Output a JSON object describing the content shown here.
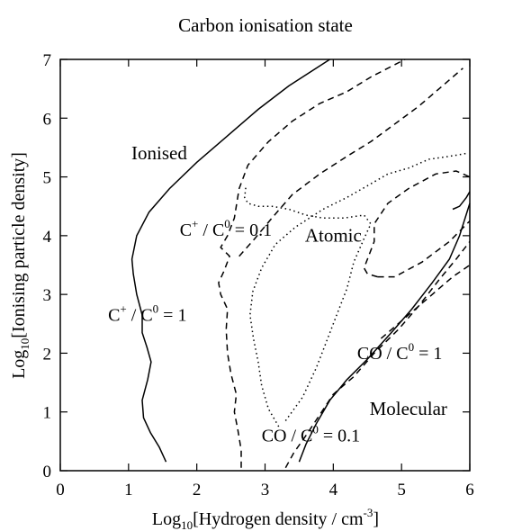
{
  "chart_data": {
    "type": "line",
    "title": "Carbon ionisation state",
    "xlabel": "Log",
    "xlabel_sub": "10",
    "xlabel_rest": "[Hydrogen density / cm",
    "xlabel_sup": "-3",
    "xlabel_end": "]",
    "ylabel": "Log",
    "ylabel_sub": "10",
    "ylabel_rest": "[Ionising particle density]",
    "xlim": [
      0,
      6
    ],
    "ylim": [
      0,
      7
    ],
    "xticks": [
      "0",
      "1",
      "2",
      "3",
      "4",
      "5",
      "6"
    ],
    "yticks": [
      "0",
      "1",
      "2",
      "3",
      "4",
      "5",
      "6",
      "7"
    ],
    "grid": false,
    "regions": [
      {
        "text": "Ionised",
        "x": 1.45,
        "y": 5.3
      },
      {
        "text": "Atomic",
        "x": 4.0,
        "y": 3.9
      },
      {
        "text": "Molecular",
        "x": 5.1,
        "y": 0.95
      }
    ],
    "contour_labels": [
      {
        "lhs": "C",
        "sup": "+",
        "mid": " / C",
        "sup2": "0",
        "rhs": " = 0.1",
        "x": 1.75,
        "y": 4.0
      },
      {
        "lhs": "C",
        "sup": "+",
        "mid": " / C",
        "sup2": "0",
        "rhs": " = 1",
        "x": 0.7,
        "y": 2.55
      },
      {
        "lhs": "CO / C",
        "sup": "",
        "mid": "",
        "sup2": "0",
        "rhs": " = 1",
        "x": 4.35,
        "y": 1.9
      },
      {
        "lhs": "CO / C",
        "sup": "",
        "mid": "",
        "sup2": "0",
        "rhs": " = 0.1",
        "x": 2.95,
        "y": 0.5
      }
    ],
    "series": [
      {
        "style": "solid",
        "points": [
          [
            1.55,
            0.15
          ],
          [
            1.45,
            0.4
          ],
          [
            1.32,
            0.65
          ],
          [
            1.22,
            0.9
          ],
          [
            1.2,
            1.2
          ],
          [
            1.28,
            1.55
          ],
          [
            1.33,
            1.85
          ],
          [
            1.27,
            2.1
          ],
          [
            1.2,
            2.35
          ],
          [
            1.2,
            2.65
          ],
          [
            1.12,
            3.0
          ],
          [
            1.07,
            3.35
          ],
          [
            1.05,
            3.6
          ],
          [
            1.12,
            4.0
          ],
          [
            1.3,
            4.4
          ],
          [
            1.6,
            4.8
          ],
          [
            2.0,
            5.25
          ],
          [
            2.45,
            5.7
          ],
          [
            2.9,
            6.15
          ],
          [
            3.35,
            6.55
          ],
          [
            3.95,
            7.0
          ]
        ]
      },
      {
        "style": "dashed",
        "points": [
          [
            2.65,
            0.05
          ],
          [
            2.65,
            0.35
          ],
          [
            2.6,
            0.7
          ],
          [
            2.55,
            1.0
          ],
          [
            2.58,
            1.3
          ],
          [
            2.5,
            1.65
          ],
          [
            2.45,
            2.0
          ],
          [
            2.43,
            2.4
          ],
          [
            2.45,
            2.75
          ],
          [
            2.35,
            3.0
          ],
          [
            2.32,
            3.2
          ],
          [
            2.4,
            3.4
          ],
          [
            2.48,
            3.65
          ],
          [
            2.35,
            3.8
          ],
          [
            2.45,
            4.0
          ],
          [
            2.55,
            4.3
          ],
          [
            2.62,
            4.8
          ],
          [
            2.75,
            5.2
          ],
          [
            3.05,
            5.6
          ],
          [
            3.4,
            5.95
          ],
          [
            3.8,
            6.25
          ],
          [
            4.2,
            6.45
          ],
          [
            4.55,
            6.7
          ],
          [
            5.05,
            7.0
          ]
        ]
      },
      {
        "style": "dashed",
        "points": [
          [
            2.62,
            3.65
          ],
          [
            2.85,
            3.95
          ],
          [
            3.1,
            4.3
          ],
          [
            3.4,
            4.7
          ],
          [
            3.8,
            5.05
          ],
          [
            4.2,
            5.35
          ],
          [
            4.55,
            5.6
          ],
          [
            4.9,
            5.9
          ],
          [
            5.25,
            6.2
          ],
          [
            5.6,
            6.55
          ],
          [
            5.9,
            6.85
          ]
        ]
      },
      {
        "style": "dashed",
        "points": [
          [
            3.3,
            0.05
          ],
          [
            3.42,
            0.3
          ],
          [
            3.6,
            0.6
          ],
          [
            3.8,
            0.95
          ],
          [
            4.0,
            1.3
          ],
          [
            4.3,
            1.6
          ],
          [
            4.6,
            2.0
          ],
          [
            4.95,
            2.4
          ],
          [
            5.25,
            2.8
          ],
          [
            5.55,
            3.25
          ],
          [
            5.8,
            3.6
          ],
          [
            6.0,
            3.9
          ]
        ]
      },
      {
        "style": "dashed",
        "points": [
          [
            4.7,
            2.25
          ],
          [
            5.0,
            2.55
          ],
          [
            5.4,
            2.95
          ],
          [
            5.75,
            3.3
          ],
          [
            6.0,
            3.5
          ]
        ]
      },
      {
        "style": "dashed",
        "points": [
          [
            4.65,
            3.3
          ],
          [
            4.5,
            3.35
          ],
          [
            4.45,
            3.45
          ],
          [
            4.6,
            3.9
          ],
          [
            4.6,
            4.2
          ],
          [
            4.8,
            4.55
          ],
          [
            5.1,
            4.8
          ],
          [
            5.5,
            5.05
          ],
          [
            5.8,
            5.1
          ],
          [
            6.0,
            5.0
          ]
        ]
      },
      {
        "style": "dashed",
        "points": [
          [
            4.65,
            3.3
          ],
          [
            4.9,
            3.3
          ],
          [
            5.3,
            3.55
          ],
          [
            5.7,
            3.9
          ],
          [
            6.0,
            4.25
          ]
        ]
      },
      {
        "style": "dotted",
        "points": [
          [
            3.2,
            0.75
          ],
          [
            3.05,
            1.05
          ],
          [
            2.95,
            1.45
          ],
          [
            2.9,
            1.85
          ],
          [
            2.83,
            2.25
          ],
          [
            2.78,
            2.65
          ],
          [
            2.82,
            3.05
          ],
          [
            2.95,
            3.45
          ],
          [
            3.15,
            3.85
          ],
          [
            3.45,
            4.15
          ],
          [
            3.85,
            4.45
          ],
          [
            4.2,
            4.65
          ],
          [
            4.5,
            4.85
          ],
          [
            4.8,
            5.05
          ],
          [
            5.1,
            5.15
          ],
          [
            5.4,
            5.3
          ],
          [
            5.7,
            5.35
          ],
          [
            5.95,
            5.4
          ]
        ]
      },
      {
        "style": "dotted",
        "points": [
          [
            3.3,
            0.85
          ],
          [
            3.55,
            1.25
          ],
          [
            3.75,
            1.75
          ],
          [
            3.9,
            2.2
          ],
          [
            4.05,
            2.65
          ],
          [
            4.2,
            3.1
          ],
          [
            4.3,
            3.55
          ],
          [
            4.45,
            3.95
          ],
          [
            4.55,
            4.2
          ],
          [
            4.45,
            4.35
          ],
          [
            4.15,
            4.3
          ],
          [
            3.85,
            4.3
          ],
          [
            3.6,
            4.35
          ],
          [
            3.35,
            4.45
          ],
          [
            3.1,
            4.5
          ],
          [
            2.9,
            4.5
          ],
          [
            2.75,
            4.55
          ],
          [
            2.7,
            4.65
          ],
          [
            2.72,
            4.85
          ]
        ]
      },
      {
        "style": "solid",
        "points": [
          [
            3.5,
            0.15
          ],
          [
            3.6,
            0.45
          ],
          [
            3.75,
            0.8
          ],
          [
            3.95,
            1.2
          ],
          [
            4.2,
            1.55
          ],
          [
            4.5,
            1.9
          ],
          [
            4.85,
            2.35
          ],
          [
            5.15,
            2.75
          ],
          [
            5.45,
            3.2
          ],
          [
            5.7,
            3.6
          ],
          [
            5.85,
            4.0
          ],
          [
            6.0,
            4.55
          ]
        ]
      },
      {
        "style": "solid",
        "points": [
          [
            5.75,
            4.45
          ],
          [
            5.85,
            4.5
          ],
          [
            5.95,
            4.65
          ],
          [
            6.0,
            4.75
          ]
        ]
      }
    ]
  }
}
